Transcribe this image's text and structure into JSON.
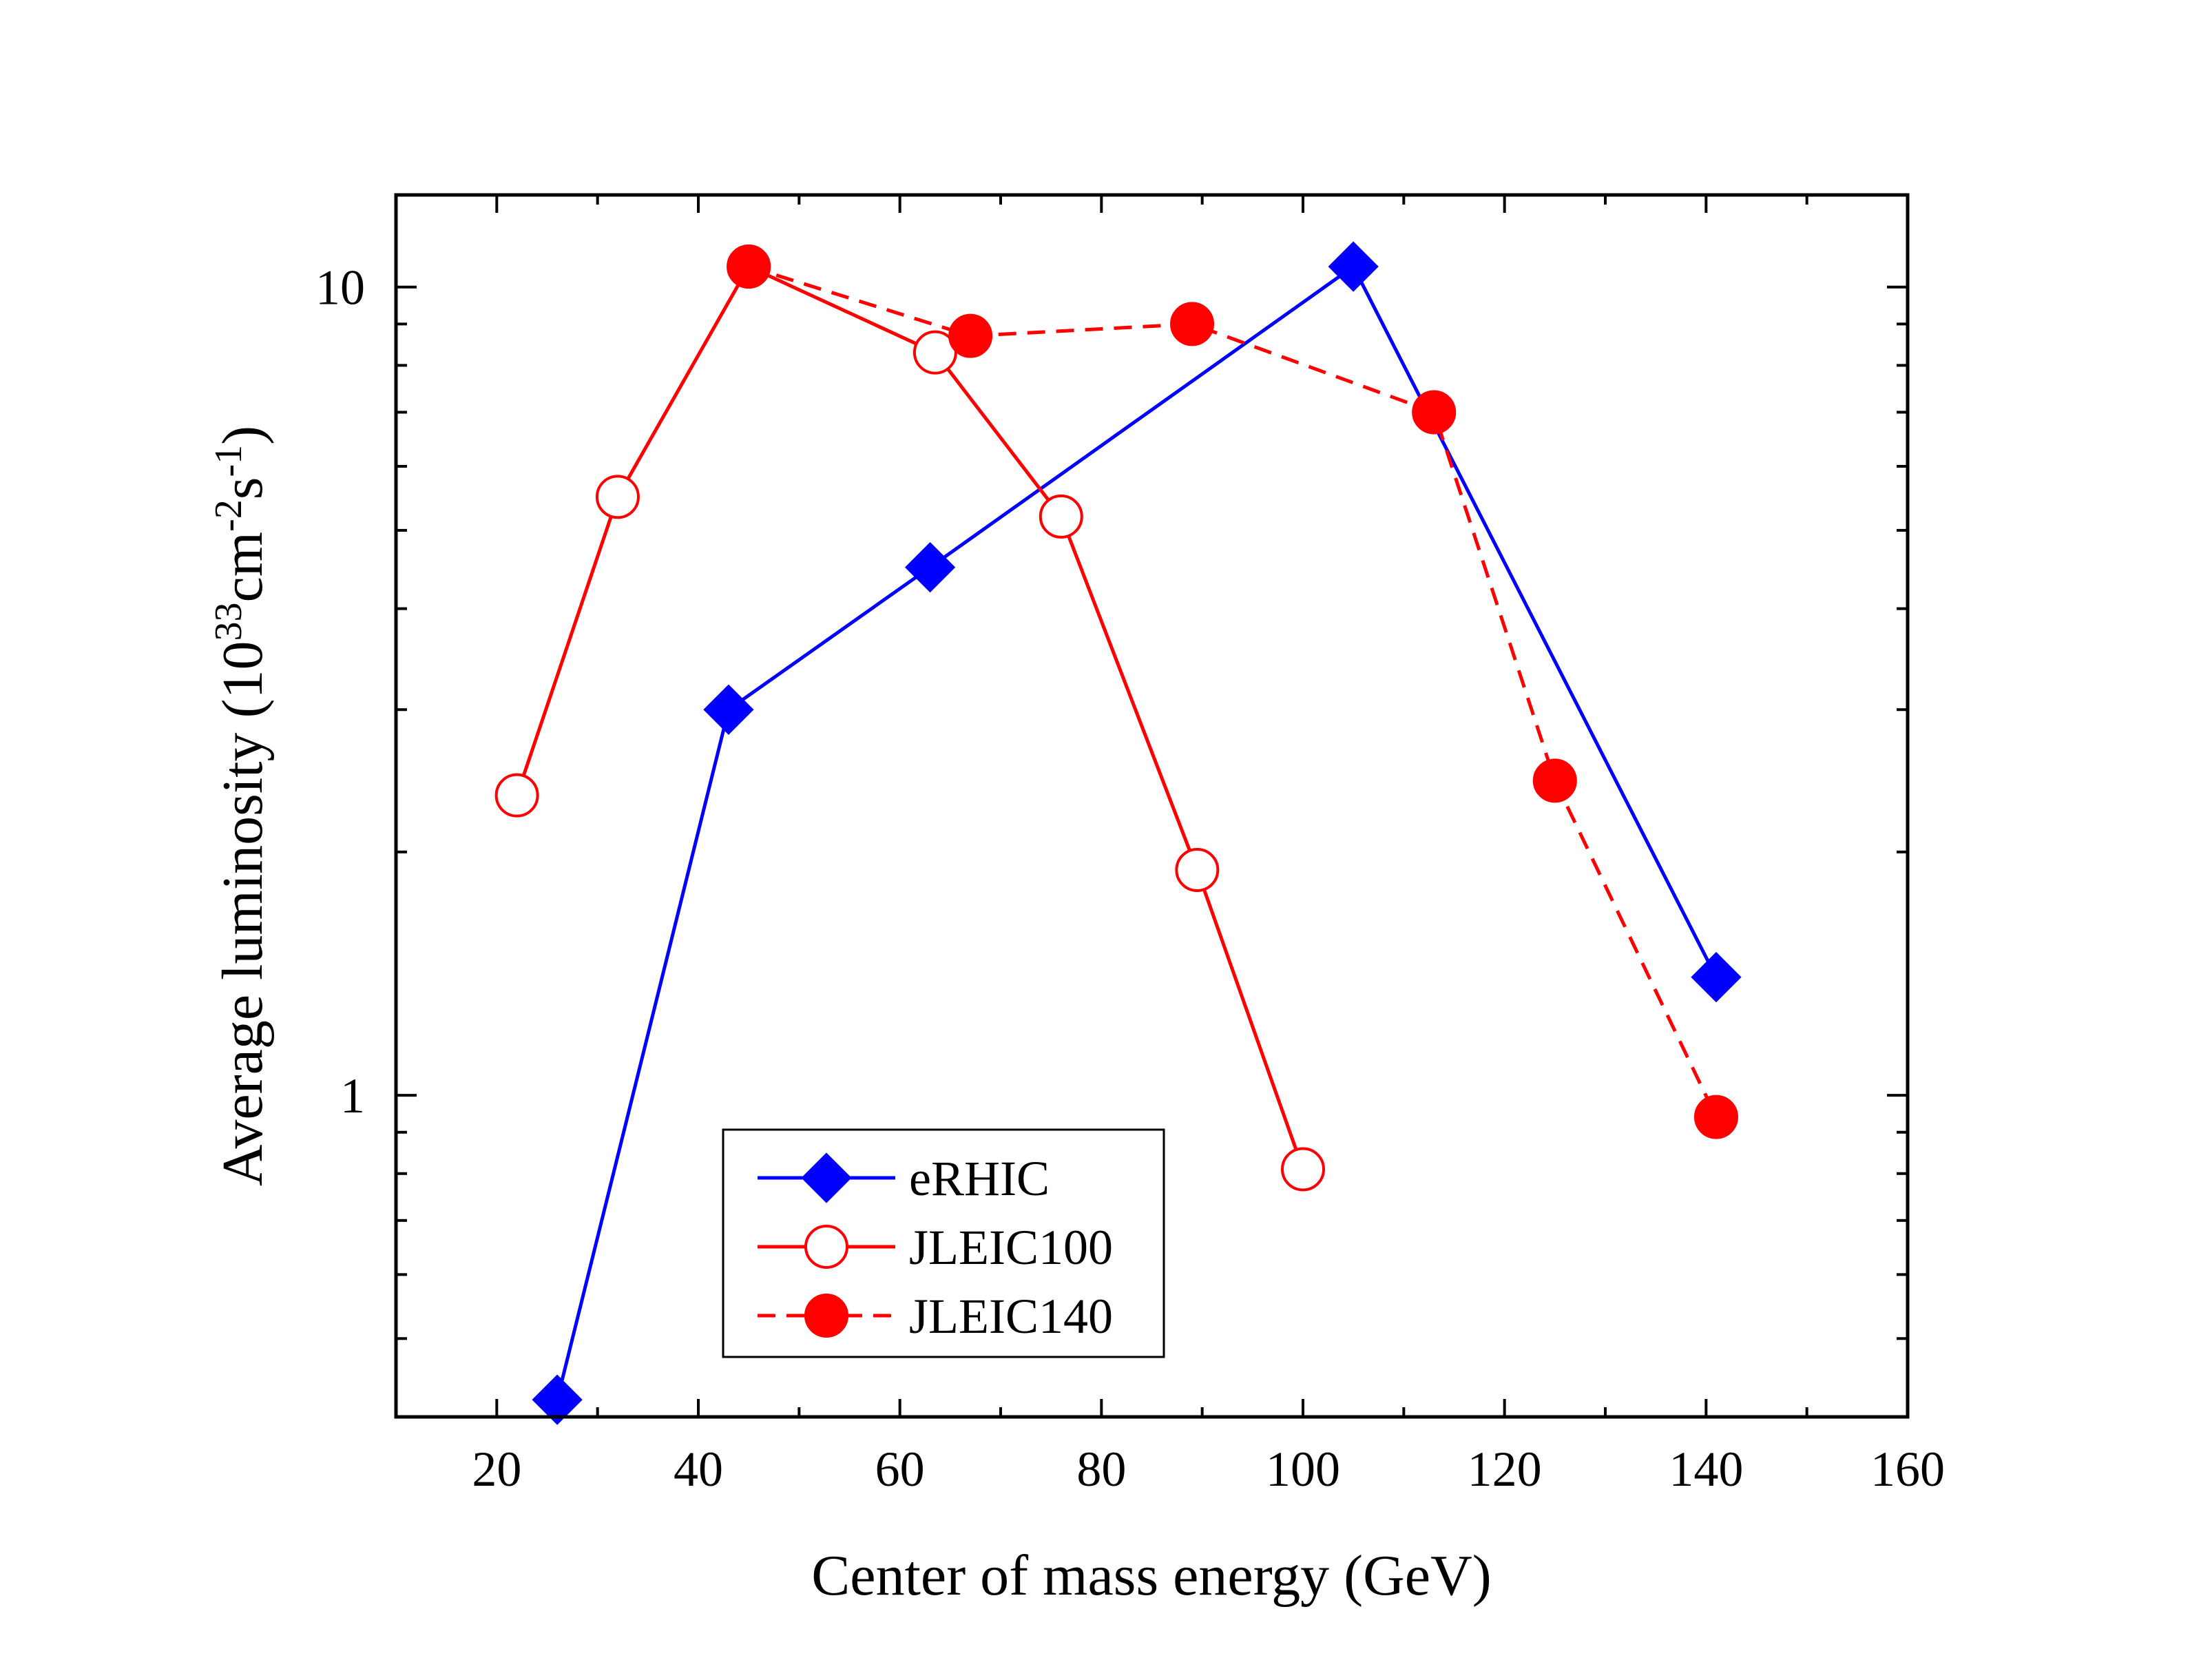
{
  "chart_data": {
    "type": "line",
    "title": "",
    "xlabel": "Center of mass energy (GeV)",
    "ylabel": {
      "prefix": "Average luminosity (10",
      "exp1": "33",
      "mid": "cm",
      "exp2": "-2",
      "mid2": "s",
      "exp3": "-1",
      "suffix": ")"
    },
    "xscale": "linear",
    "yscale": "log",
    "xlim": [
      10,
      160
    ],
    "ylim": [
      0.4,
      13
    ],
    "xticks": [
      20,
      40,
      60,
      80,
      100,
      120,
      140,
      160
    ],
    "yticks": [
      1,
      10
    ],
    "ytick_labels": [
      "1",
      "10"
    ],
    "legend_position": "lower-left",
    "series": [
      {
        "name": "eRHIC",
        "color": "#0000ff",
        "marker": "diamond",
        "filled": true,
        "line": "solid",
        "x": [
          26,
          43,
          63,
          105,
          141
        ],
        "y": [
          0.42,
          3.0,
          4.5,
          10.6,
          1.4
        ]
      },
      {
        "name": "JLEIC100",
        "color": "#ff0000",
        "marker": "circle",
        "filled": false,
        "line": "solid",
        "x": [
          22,
          32,
          45,
          63.5,
          76,
          89.5,
          100
        ],
        "y": [
          2.35,
          5.5,
          10.6,
          8.3,
          5.2,
          1.9,
          0.81
        ]
      },
      {
        "name": "JLEIC140",
        "color": "#ff0000",
        "marker": "circle",
        "filled": true,
        "line": "dashed",
        "x": [
          45,
          67,
          89,
          113,
          125,
          141
        ],
        "y": [
          10.6,
          8.7,
          9.0,
          7.0,
          2.45,
          0.94
        ]
      }
    ]
  }
}
